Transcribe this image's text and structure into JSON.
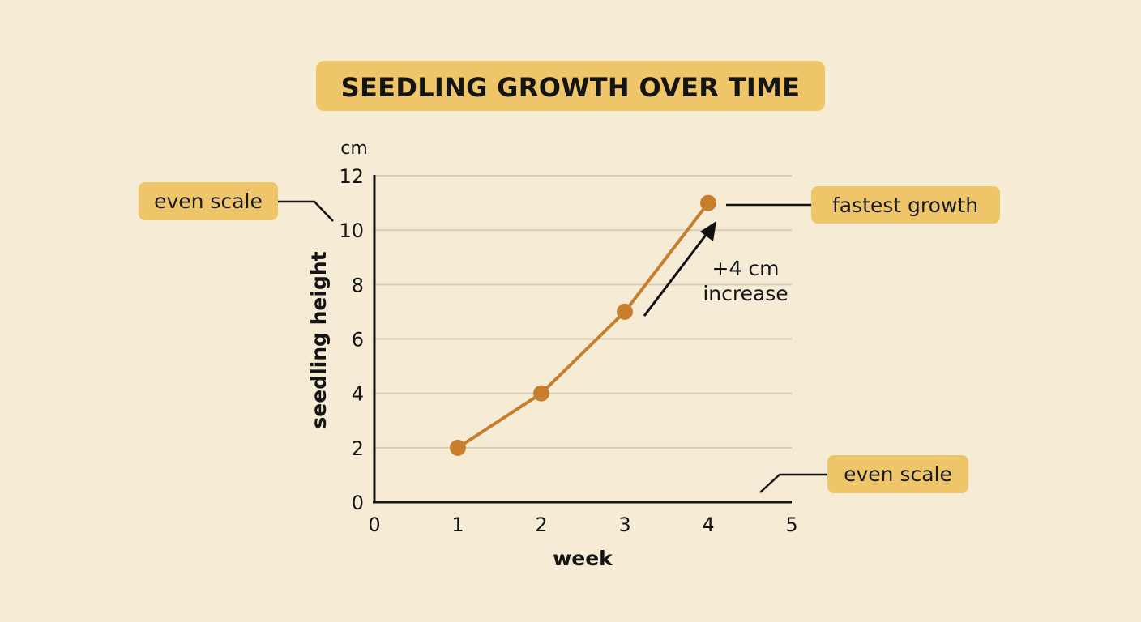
{
  "chart_data": {
    "type": "line",
    "title": "SEEDLING GROWTH OVER TIME",
    "xlabel": "week",
    "ylabel": "seedling height",
    "y_unit": "cm",
    "xlim": [
      0,
      5
    ],
    "ylim": [
      0,
      12
    ],
    "x_ticks": [
      "0",
      "1",
      "2",
      "3",
      "4",
      "5"
    ],
    "y_ticks": [
      "0",
      "2",
      "4",
      "6",
      "8",
      "10",
      "12"
    ],
    "grid": true,
    "series": [
      {
        "x": [
          1,
          2,
          3,
          4
        ],
        "values": [
          2,
          4,
          7,
          11
        ],
        "color": "#c77f2e"
      }
    ],
    "annotations": {
      "increase_note": [
        "+4 cm",
        "increase"
      ],
      "fastest_growth": "fastest growth",
      "even_scale_y": "even scale",
      "even_scale_x": "even scale"
    }
  },
  "colors": {
    "background": "#f6ecd6",
    "label_fill": "#efc56a",
    "line": "#c77f2e",
    "grid": "#d5cdb8",
    "axis": "#141414"
  }
}
